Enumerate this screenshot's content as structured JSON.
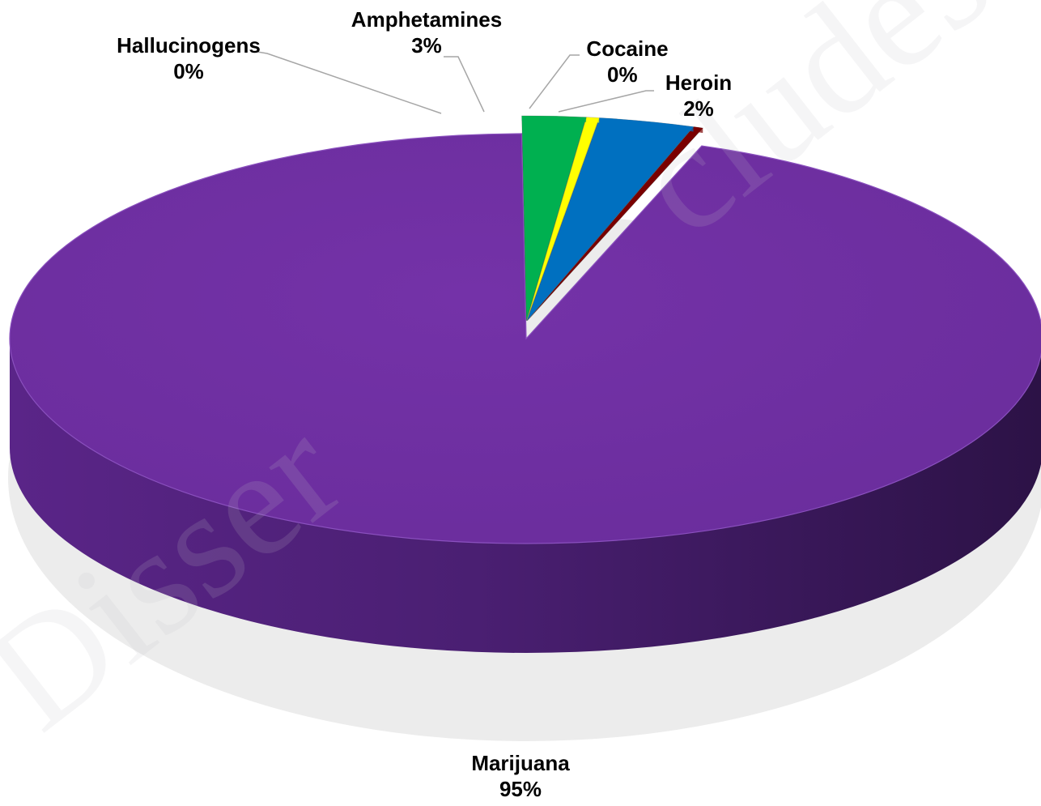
{
  "chart_data": {
    "type": "pie",
    "style": "3d",
    "title": "",
    "slices": [
      {
        "label": "Marijuana",
        "value": 95,
        "value_label": "95%",
        "color": "#7030a0"
      },
      {
        "label": "Hallucinogens",
        "value": 0.3,
        "value_label": "0%",
        "color": "#7a0000"
      },
      {
        "label": "Amphetamines",
        "value": 3,
        "value_label": "3%",
        "color": "#0070c0"
      },
      {
        "label": "Cocaine",
        "value": 0.4,
        "value_label": "0%",
        "color": "#ffff00"
      },
      {
        "label": "Heroin",
        "value": 2,
        "value_label": "2%",
        "color": "#00b050"
      }
    ],
    "legend": "none"
  }
}
